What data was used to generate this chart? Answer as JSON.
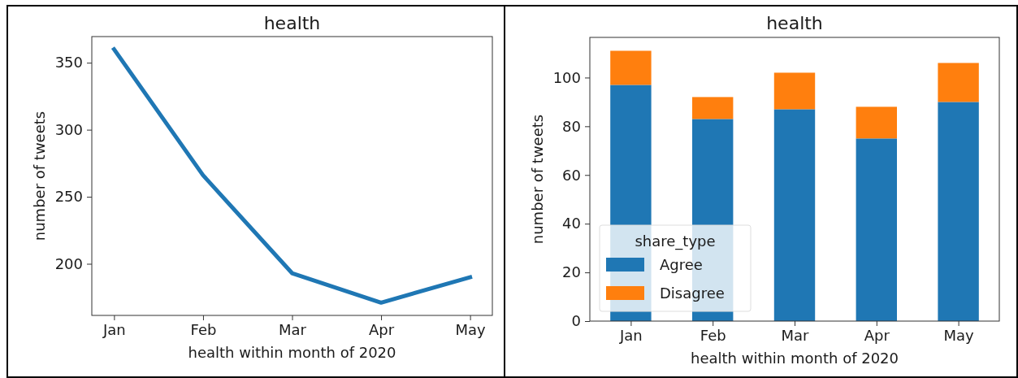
{
  "chart_data": [
    {
      "type": "line",
      "title": "health",
      "xlabel": "health within month of 2020",
      "ylabel": "number of tweets",
      "categories": [
        "Jan",
        "Feb",
        "Mar",
        "Apr",
        "May"
      ],
      "series": [
        {
          "color": "#1f77b4",
          "values": [
            360,
            266,
            193,
            171,
            190
          ]
        }
      ],
      "ylim": [
        161.5,
        369.5
      ],
      "yticks": [
        200,
        250,
        300,
        350
      ],
      "grid": false,
      "legend": false
    },
    {
      "type": "bar",
      "stacked": true,
      "title": "health",
      "xlabel": "health within month of 2020",
      "ylabel": "number of tweets",
      "categories": [
        "Jan",
        "Feb",
        "Mar",
        "Apr",
        "May"
      ],
      "series": [
        {
          "name": "Agree",
          "color": "#1f77b4",
          "values": [
            97,
            83,
            87,
            75,
            90
          ]
        },
        {
          "name": "Disagree",
          "color": "#ff7f0e",
          "values": [
            14,
            9,
            15,
            13,
            16
          ]
        }
      ],
      "ylim": [
        0,
        116.5
      ],
      "yticks": [
        0,
        20,
        40,
        60,
        80,
        100
      ],
      "grid": false,
      "legend": "bottom left",
      "legend_title": "share_type"
    }
  ]
}
